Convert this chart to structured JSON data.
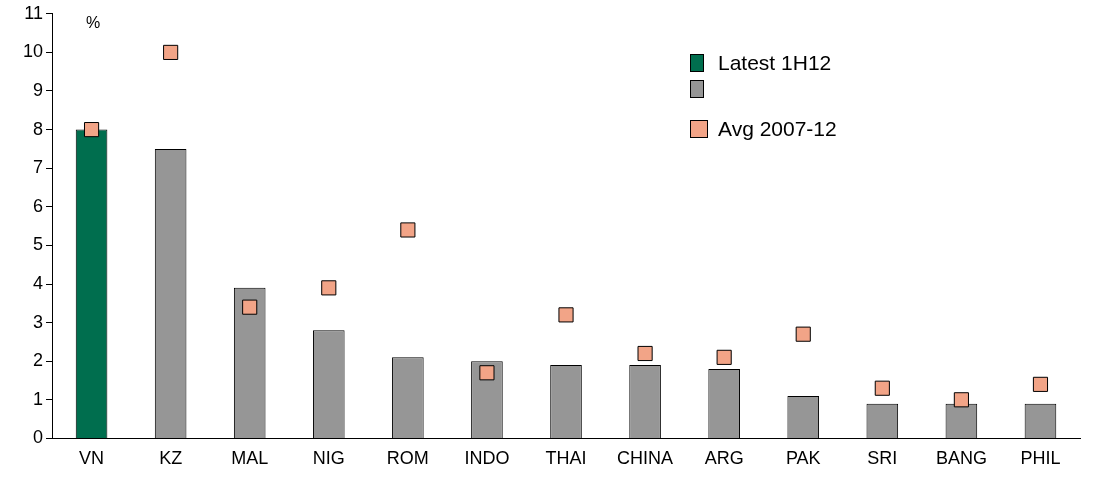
{
  "chart_data": {
    "type": "bar",
    "ylabel": "%",
    "categories": [
      "VN",
      "KZ",
      "MAL",
      "NIG",
      "ROM",
      "INDO",
      "THAI",
      "CHINA",
      "ARG",
      "PAK",
      "SRI",
      "BANG",
      "PHIL"
    ],
    "series": [
      {
        "name": "Latest 1H12",
        "color": "#006e4e",
        "colors": [
          "#006e4e",
          "#969696",
          "#969696",
          "#969696",
          "#969696",
          "#969696",
          "#969696",
          "#969696",
          "#969696",
          "#969696",
          "#969696",
          "#969696",
          "#969696"
        ],
        "values": [
          8,
          7.5,
          3.9,
          2.8,
          2.1,
          2.0,
          1.9,
          1.9,
          1.8,
          1.1,
          0.9,
          0.9,
          0.9
        ]
      },
      {
        "type": "scatter",
        "name": "Avg 2007-12",
        "color": "#f2a487",
        "x": [
          "VN",
          "KZ",
          "MAL",
          "NIG",
          "ROM",
          "INDO",
          "THAI",
          "CHINA",
          "ARG",
          "PAK",
          "SRI",
          "BANG",
          "PHIL"
        ],
        "values": [
          8.0,
          10.0,
          3.4,
          3.9,
          5.4,
          1.7,
          3.2,
          2.2,
          2.1,
          2.7,
          1.3,
          1.0,
          1.4
        ]
      }
    ],
    "ylim": [
      0,
      11
    ],
    "yticks": [
      0,
      1,
      2,
      3,
      4,
      5,
      6,
      7,
      8,
      9,
      10,
      11
    ],
    "grid": false,
    "legend": "top right",
    "marker": "square"
  }
}
